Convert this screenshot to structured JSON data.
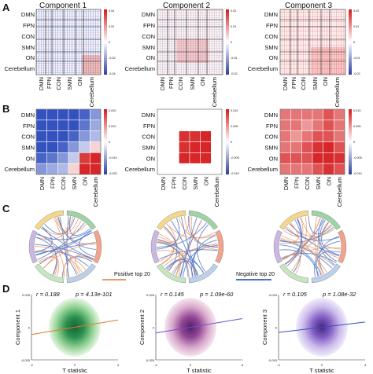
{
  "panel_letters": [
    "A",
    "B",
    "C",
    "D"
  ],
  "row_a": {
    "titles": [
      "Component 1",
      "Component 2",
      "Component 3"
    ],
    "networks": [
      "DMN",
      "FPN",
      "CON",
      "SMN",
      "ON",
      "Cerebellum"
    ],
    "colorbar_ticks": [
      [
        "0.04",
        "0.02",
        "0",
        "-0.02",
        "-0.04"
      ],
      [
        "0.02",
        "0.01",
        "0",
        "-0.01",
        "-0.02"
      ],
      [
        "0.02",
        "0.01",
        "0",
        "-0.01",
        "-0.02"
      ]
    ]
  },
  "row_b": {
    "row_labels": [
      "DMN",
      "FPN",
      "CON",
      "SMN",
      "ON",
      "Cerebellum"
    ],
    "col_labels": [
      "DMN",
      "FPN",
      "CON",
      "SMN",
      "ON",
      "Cerebellum"
    ],
    "colorbar_ticks": [
      [
        "0.020",
        "0.010",
        "0",
        "-0.010",
        "-0.020"
      ],
      [
        "0.010",
        "0.005",
        "0",
        "-0.005",
        "-0.010"
      ],
      [
        "0.010",
        "0.005",
        "0",
        "-0.005",
        "-0.010"
      ]
    ]
  },
  "row_c": {
    "network_labels": [
      "DMN",
      "FPN",
      "CON",
      "SMN",
      "ON",
      "Cerebellum"
    ],
    "legend": [
      "Positive top 20",
      "Negative top 20"
    ]
  },
  "row_d": {
    "stats": [
      {
        "r": "r = 0.188",
        "p": "p = 4.13e-101"
      },
      {
        "r": "r = 0.145",
        "p": "p = 1.09e-60"
      },
      {
        "r": "r = 0.105",
        "p": "p = 1.08e-32"
      }
    ],
    "xlabel": "T statistic"
  },
  "colors": {
    "positive": "#e23b2e",
    "negative": "#3a57c7",
    "positive_link": "#e89a6c",
    "negative_link": "#4a72c9",
    "ring": [
      "#9fd3a6",
      "#f1a48b",
      "#bcd0ea",
      "#c5e6c0",
      "#c9b8e3",
      "#f3d78d"
    ]
  },
  "chart_data": [
    {
      "type": "heatmap",
      "title": "Component 1",
      "rows": [
        "DMN",
        "FPN",
        "CON",
        "SMN",
        "ON",
        "Cerebellum"
      ],
      "cols": [
        "DMN",
        "FPN",
        "CON",
        "SMN",
        "ON",
        "Cerebellum"
      ],
      "values": [
        [
          -0.012,
          -0.013,
          -0.011,
          -0.012,
          -0.009,
          -0.006
        ],
        [
          -0.013,
          -0.014,
          -0.012,
          -0.01,
          -0.008,
          -0.005
        ],
        [
          -0.011,
          -0.012,
          -0.01,
          -0.009,
          -0.006,
          -0.004
        ],
        [
          -0.012,
          -0.01,
          -0.009,
          -0.006,
          -0.003,
          0.002
        ],
        [
          -0.009,
          -0.008,
          -0.006,
          -0.003,
          0.009,
          0.015
        ],
        [
          -0.006,
          -0.005,
          -0.004,
          0.002,
          0.015,
          0.02
        ]
      ],
      "clim": [
        -0.04,
        0.04
      ]
    },
    {
      "type": "heatmap",
      "title": "Component 2",
      "rows": [
        "DMN",
        "FPN",
        "CON",
        "SMN",
        "ON",
        "Cerebellum"
      ],
      "cols": [
        "DMN",
        "FPN",
        "CON",
        "SMN",
        "ON",
        "Cerebellum"
      ],
      "values": [
        [
          0.0,
          0.0,
          0.0,
          0.0,
          0.0,
          0.0
        ],
        [
          0.0,
          0.0,
          0.0,
          0.0,
          0.0,
          0.0
        ],
        [
          0.0,
          0.0,
          0.006,
          0.006,
          0.007,
          0.0
        ],
        [
          0.0,
          0.0,
          0.006,
          0.007,
          0.008,
          0.0
        ],
        [
          0.0,
          0.0,
          0.007,
          0.008,
          0.009,
          0.0
        ],
        [
          0.0,
          0.0,
          0.0,
          0.0,
          0.0,
          0.0
        ]
      ],
      "clim": [
        -0.02,
        0.02
      ]
    },
    {
      "type": "heatmap",
      "title": "Component 3",
      "rows": [
        "DMN",
        "FPN",
        "CON",
        "SMN",
        "ON",
        "Cerebellum"
      ],
      "cols": [
        "DMN",
        "FPN",
        "CON",
        "SMN",
        "ON",
        "Cerebellum"
      ],
      "values": [
        [
          0.004,
          0.004,
          0.004,
          0.004,
          0.005,
          0.004
        ],
        [
          0.004,
          0.004,
          0.003,
          0.004,
          0.005,
          0.004
        ],
        [
          0.004,
          0.003,
          0.004,
          0.005,
          0.005,
          0.004
        ],
        [
          0.004,
          0.004,
          0.005,
          0.006,
          0.007,
          0.005
        ],
        [
          0.005,
          0.005,
          0.005,
          0.007,
          0.009,
          0.006
        ],
        [
          0.004,
          0.004,
          0.004,
          0.005,
          0.006,
          0.005
        ]
      ],
      "clim": [
        -0.02,
        0.02
      ]
    },
    {
      "type": "scatter",
      "ylabel": "Component 1",
      "xlabel": "T statistic",
      "xlim": [
        -4,
        4
      ],
      "ylim": [
        -0.025,
        0.025
      ],
      "x_ticks": [
        "-4",
        "0",
        "4"
      ],
      "y_ticks": [
        "0.025",
        "0",
        "-0.025"
      ],
      "r": 0.188,
      "p": "4.13e-101",
      "fit": {
        "slope": 0.0014,
        "intercept": 0.0
      }
    },
    {
      "type": "scatter",
      "ylabel": "Component 2",
      "xlabel": "T statistic",
      "xlim": [
        -4,
        6
      ],
      "ylim": [
        -0.025,
        0.025
      ],
      "x_ticks": [
        "-4",
        "0",
        "6"
      ],
      "y_ticks": [
        "0.025",
        "0",
        "-0.025"
      ],
      "r": 0.145,
      "p": "1.09e-60",
      "fit": {
        "slope": 0.0011,
        "intercept": 0.0
      }
    },
    {
      "type": "scatter",
      "ylabel": "Component 3",
      "xlabel": "T statistic",
      "xlim": [
        -4,
        4
      ],
      "ylim": [
        -0.015,
        0.015
      ],
      "x_ticks": [
        "-4",
        "0",
        "4"
      ],
      "y_ticks": [
        "0.015",
        "0",
        "-0.015"
      ],
      "r": 0.105,
      "p": "1.08e-32",
      "fit": {
        "slope": 0.0006,
        "intercept": 0.0
      }
    }
  ]
}
